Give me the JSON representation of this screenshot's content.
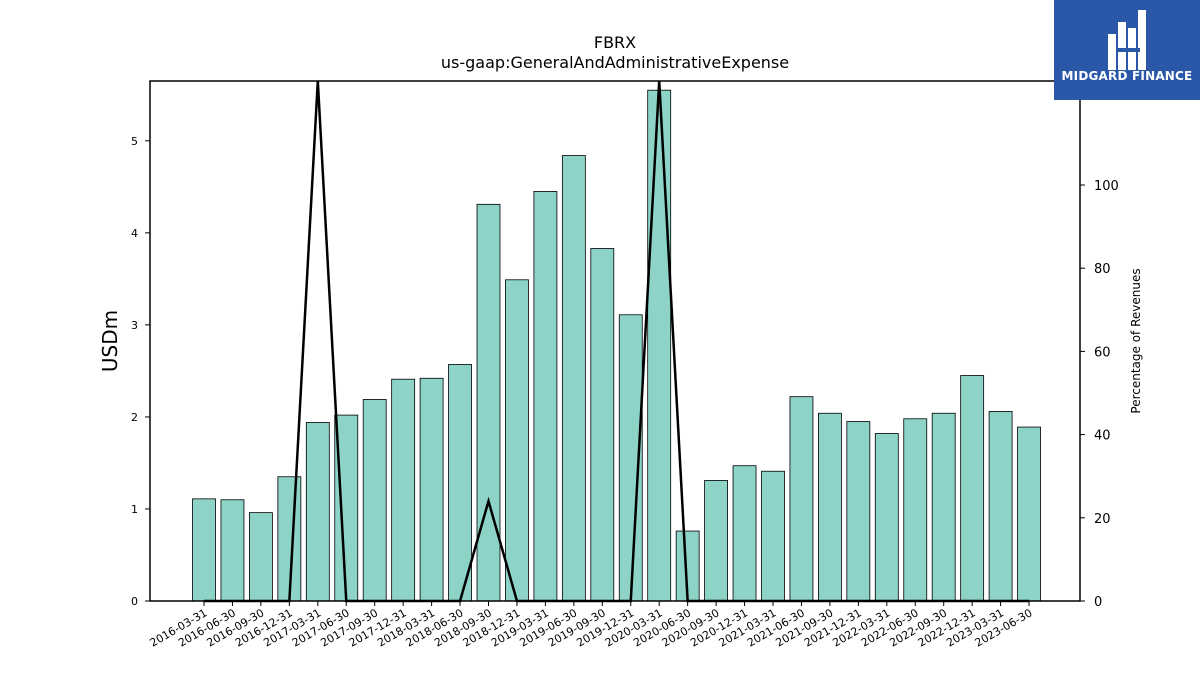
{
  "chart_data": {
    "type": "bar",
    "title": "FBRX",
    "subtitle": "us-gaap:GeneralAndAdministrativeExpense",
    "ylabel": "USDm",
    "y2label": "Percentage of Revenues",
    "ylim": [
      0,
      5.65
    ],
    "y2lim": [
      0,
      125
    ],
    "yticks": [
      0,
      1,
      2,
      3,
      4,
      5
    ],
    "y2ticks": [
      0,
      20,
      40,
      60,
      80,
      100
    ],
    "grid": false,
    "categories": [
      "2016-03-31",
      "2016-06-30",
      "2016-09-30",
      "2016-12-31",
      "2017-03-31",
      "2017-06-30",
      "2017-09-30",
      "2017-12-31",
      "2018-03-31",
      "2018-06-30",
      "2018-09-30",
      "2018-12-31",
      "2019-03-31",
      "2019-06-30",
      "2019-09-30",
      "2019-12-31",
      "2020-03-31",
      "2020-06-30",
      "2020-09-30",
      "2020-12-31",
      "2021-03-31",
      "2021-06-30",
      "2021-09-30",
      "2021-12-31",
      "2022-03-31",
      "2022-06-30",
      "2022-09-30",
      "2022-12-31",
      "2023-03-31",
      "2023-06-30"
    ],
    "series": [
      {
        "axis": "left",
        "color": "#8dd3c7",
        "values": [
          1.11,
          1.1,
          0.96,
          1.35,
          1.94,
          2.02,
          2.19,
          2.41,
          2.42,
          2.57,
          4.31,
          3.49,
          4.45,
          4.84,
          3.83,
          3.11,
          5.55,
          0.76,
          1.31,
          1.47,
          1.41,
          2.22,
          2.04,
          1.95,
          1.82,
          1.98,
          2.04,
          2.45,
          2.06,
          1.89
        ]
      },
      {
        "axis": "right",
        "type": "line",
        "color": "#000000",
        "values": [
          0,
          0,
          0,
          0,
          "off-scale",
          0,
          0,
          0,
          0,
          0,
          24,
          0,
          0,
          0,
          0,
          0,
          "off-scale",
          0,
          0,
          0,
          0,
          0,
          0,
          0,
          0,
          0,
          0,
          0,
          0,
          0
        ]
      }
    ]
  },
  "logo": {
    "text": "MIDGARD FINANCE",
    "color": "#2a57a8"
  }
}
